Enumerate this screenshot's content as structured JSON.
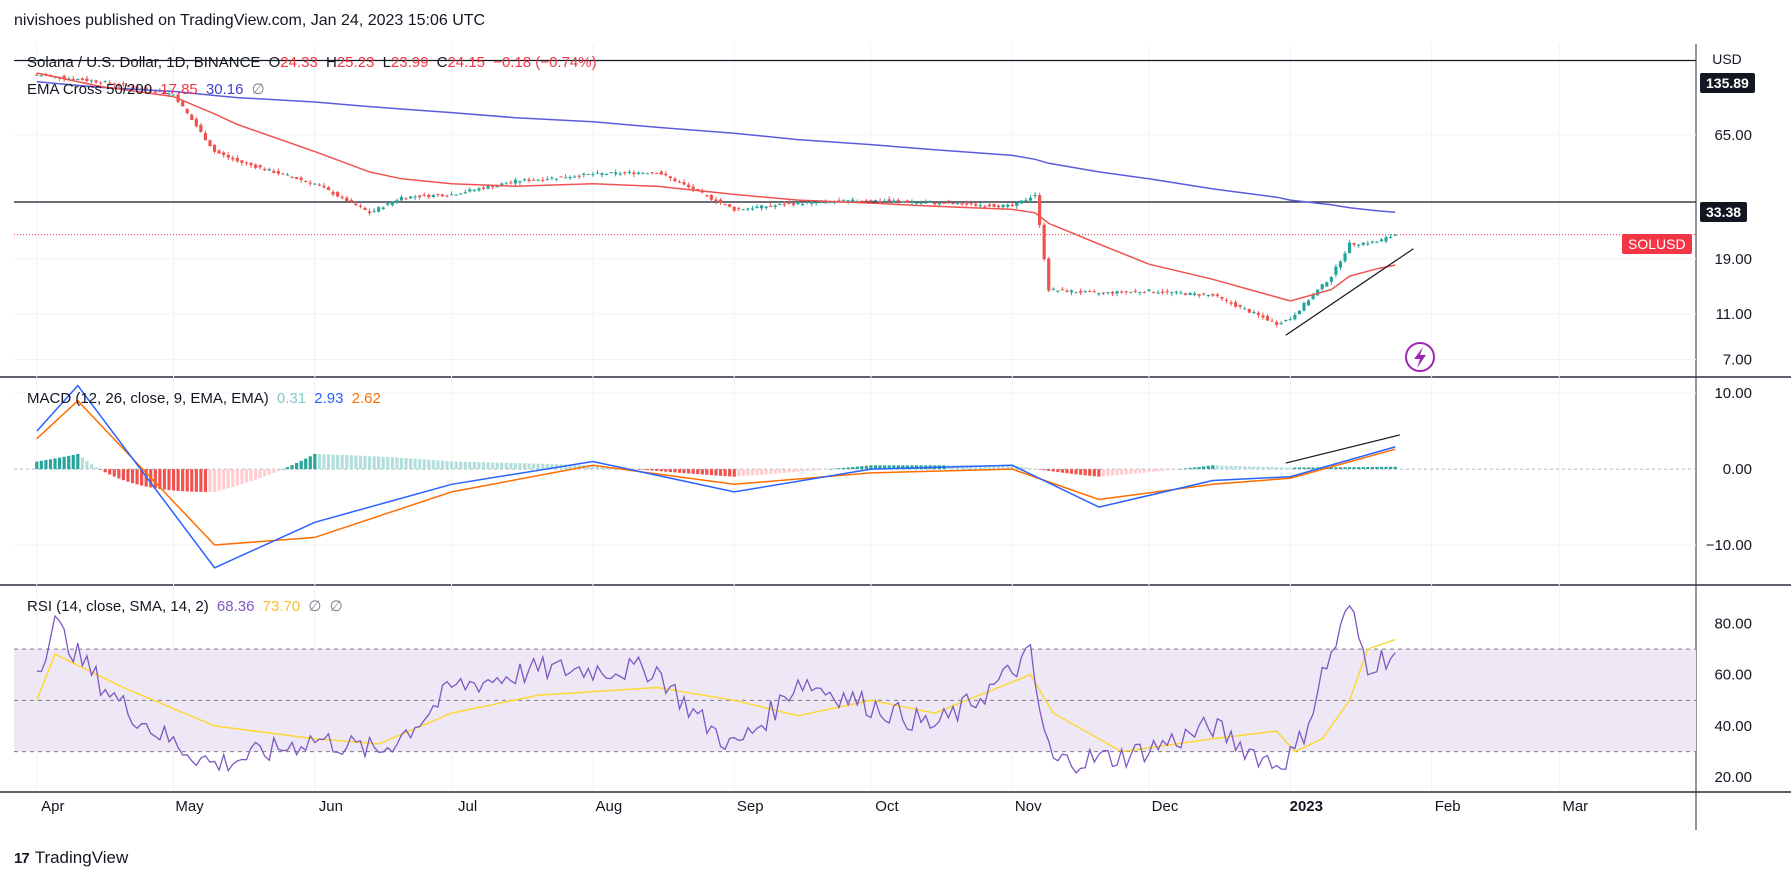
{
  "header": {
    "publisher_line": "nivishoes published on TradingView.com, Jan 24, 2023 15:06 UTC"
  },
  "footer": {
    "brand": "TradingView",
    "brand_mark": "17"
  },
  "colors": {
    "up": "#26a69a",
    "down": "#ef5350",
    "ema50": "#f05350",
    "ema200": "#5b5bdb",
    "macd": "#2962ff",
    "signal": "#ff6d00",
    "rsi": "#7e57c2",
    "rsi_ma": "#fdd835",
    "rsi_band": "#ede7f6",
    "hist_up": "#26a69a",
    "hist_up_light": "#b2dfdb",
    "hist_down": "#ef5350",
    "hist_down_light": "#ffcdd2",
    "grid": "#f0f3fa",
    "sol_badge": "#f23645",
    "level_badge": "#131722"
  },
  "price_pane": {
    "legend": {
      "symbol": "Solana / U.S. Dollar, 1D, BINANCE",
      "o_label": "O",
      "o": "24.33",
      "h_label": "H",
      "h": "25.23",
      "l_label": "L",
      "l": "23.99",
      "c_label": "C",
      "c": "24.15",
      "change": "−0.18 (−0.74%)"
    },
    "ema_legend": {
      "name": "EMA Cross 50/200",
      "ema50": "17.85",
      "ema200": "30.16",
      "extra": "∅"
    },
    "currency": "USD",
    "axis_ticks": [
      "65.00",
      "19.00",
      "11.00",
      "7.00"
    ],
    "badges": {
      "top_level": "135.89",
      "mid_level": "33.38",
      "symbol": "SOLUSD"
    },
    "icon": "lightning-icon"
  },
  "macd_pane": {
    "legend": {
      "name": "MACD (12, 26, close, 9, EMA, EMA)",
      "hist": "0.31",
      "macd": "2.93",
      "signal": "2.62"
    },
    "axis_ticks": [
      "10.00",
      "0.00",
      "−10.00"
    ]
  },
  "rsi_pane": {
    "legend": {
      "name": "RSI (14, close, SMA, 14, 2)",
      "rsi": "68.36",
      "ma": "73.70",
      "extra1": "∅",
      "extra2": "∅"
    },
    "axis_ticks": [
      "80.00",
      "60.00",
      "40.00",
      "20.00"
    ]
  },
  "time_axis": [
    "Apr",
    "May",
    "Jun",
    "Jul",
    "Aug",
    "Sep",
    "Oct",
    "Nov",
    "Dec",
    "2023",
    "Feb",
    "Mar"
  ],
  "chart_data": {
    "type": "line",
    "title": "Solana / U.S. Dollar, 1D, BINANCE",
    "x": [
      "2022-04-01",
      "2022-04-15",
      "2022-05-01",
      "2022-05-10",
      "2022-05-15",
      "2022-06-01",
      "2022-06-13",
      "2022-06-20",
      "2022-07-01",
      "2022-07-15",
      "2022-08-01",
      "2022-08-15",
      "2022-09-01",
      "2022-09-15",
      "2022-10-01",
      "2022-10-15",
      "2022-11-01",
      "2022-11-06",
      "2022-11-09",
      "2022-11-20",
      "2022-12-01",
      "2022-12-15",
      "2022-12-29",
      "2023-01-01",
      "2023-01-10",
      "2023-01-14",
      "2023-01-20",
      "2023-01-24"
    ],
    "series": [
      {
        "name": "EMA 50",
        "values": [
          120,
          105,
          95,
          80,
          72,
          55,
          45,
          42,
          40,
          39,
          40,
          39,
          36,
          34,
          33,
          32,
          31,
          30,
          27,
          22,
          18,
          15.5,
          13,
          12.5,
          14,
          16,
          17.2,
          17.85
        ]
      },
      {
        "name": "EMA 200",
        "values": [
          110,
          104,
          100,
          96,
          94,
          90,
          86,
          84,
          81,
          77,
          74,
          70,
          66,
          62,
          59,
          56,
          53,
          51,
          49,
          45,
          42,
          38,
          35,
          34,
          32.5,
          31.5,
          30.6,
          30.16
        ]
      },
      {
        "name": "Close",
        "values": [
          118,
          110,
          97,
          55,
          50,
          40,
          30,
          35,
          36,
          41,
          44,
          45,
          31,
          33,
          34,
          33,
          32,
          36,
          14,
          13.5,
          13.8,
          13.2,
          10,
          10.5,
          16,
          22,
          22.5,
          24.15
        ]
      }
    ],
    "macd": {
      "x": [
        "2022-04-01",
        "2022-04-10",
        "2022-05-10",
        "2022-06-01",
        "2022-07-01",
        "2022-08-01",
        "2022-09-01",
        "2022-10-01",
        "2022-11-01",
        "2022-11-20",
        "2022-12-15",
        "2023-01-01",
        "2023-01-24"
      ],
      "macd": [
        5,
        11,
        -13,
        -7,
        -2,
        1,
        -3,
        0,
        0.5,
        -5,
        -1.5,
        -1,
        2.93
      ],
      "signal": [
        4,
        9,
        -10,
        -9,
        -3,
        0.5,
        -2,
        -0.5,
        0,
        -4,
        -2,
        -1.2,
        2.62
      ],
      "ylim": [
        -15,
        12
      ]
    },
    "rsi": {
      "x": [
        "2022-04-01",
        "2022-04-05",
        "2022-04-20",
        "2022-05-10",
        "2022-06-01",
        "2022-06-15",
        "2022-07-01",
        "2022-07-20",
        "2022-08-15",
        "2022-09-01",
        "2022-09-15",
        "2022-10-01",
        "2022-10-15",
        "2022-11-05",
        "2022-11-10",
        "2022-11-25",
        "2022-12-15",
        "2022-12-29",
        "2023-01-02",
        "2023-01-08",
        "2023-01-14",
        "2023-01-18",
        "2023-01-24"
      ],
      "rsi": [
        62,
        80,
        48,
        25,
        35,
        30,
        55,
        62,
        62,
        32,
        58,
        48,
        40,
        68,
        26,
        28,
        40,
        25,
        30,
        60,
        87,
        64,
        68.36
      ],
      "ma": [
        50,
        68,
        55,
        40,
        35,
        33,
        45,
        52,
        55,
        50,
        44,
        50,
        45,
        60,
        45,
        30,
        35,
        38,
        30,
        35,
        50,
        70,
        73.7
      ],
      "ylim": [
        15,
        95
      ]
    },
    "ylabel": "USD",
    "log_scale": true,
    "ylim": [
      6,
      160
    ]
  }
}
